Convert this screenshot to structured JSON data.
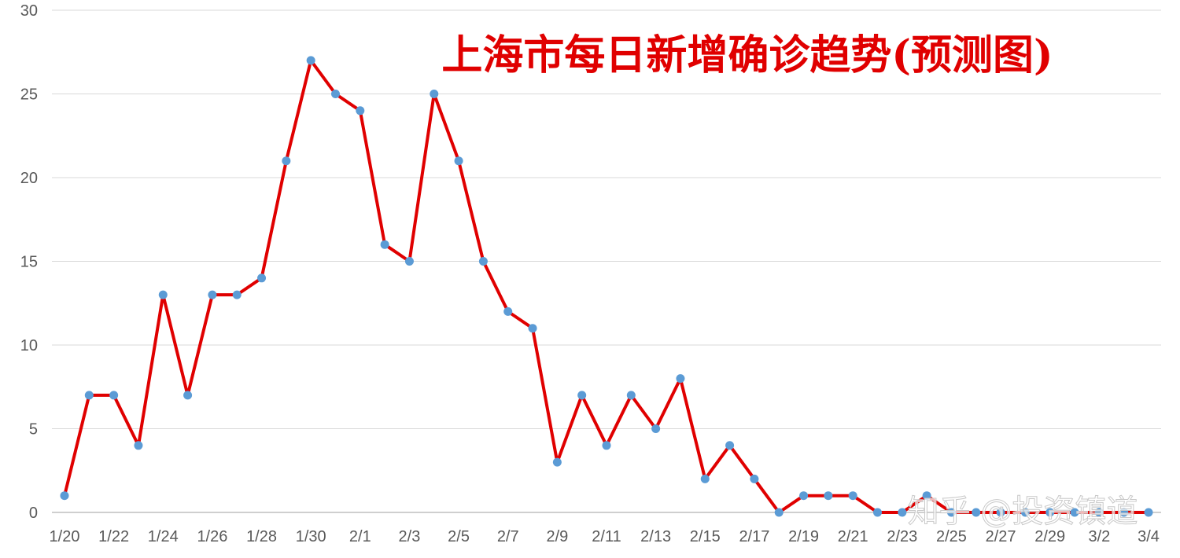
{
  "chart_data": {
    "type": "line",
    "title": "上海市每日新增确诊趋势(预测图)",
    "xlabel": "",
    "ylabel": "",
    "ylim": [
      0,
      30
    ],
    "yticks": [
      0,
      5,
      10,
      15,
      20,
      25,
      30
    ],
    "grid": true,
    "legend": "none",
    "line_color": "#e00000",
    "marker_color": "#5b9bd5",
    "title_color": "#e00000",
    "x_tick_labels": [
      "1/20",
      "1/22",
      "1/24",
      "1/26",
      "1/28",
      "1/30",
      "2/1",
      "2/3",
      "2/5",
      "2/7",
      "2/9",
      "2/11",
      "2/13",
      "2/15",
      "2/17",
      "2/19",
      "2/21",
      "2/23",
      "2/25",
      "2/27",
      "2/29",
      "3/2",
      "3/4"
    ],
    "x": [
      "1/20",
      "1/21",
      "1/22",
      "1/23",
      "1/24",
      "1/25",
      "1/26",
      "1/27",
      "1/28",
      "1/29",
      "1/30",
      "1/31",
      "2/1",
      "2/2",
      "2/3",
      "2/4",
      "2/5",
      "2/6",
      "2/7",
      "2/8",
      "2/9",
      "2/10",
      "2/11",
      "2/12",
      "2/13",
      "2/14",
      "2/15",
      "2/16",
      "2/17",
      "2/18",
      "2/19",
      "2/20",
      "2/21",
      "2/22",
      "2/23",
      "2/24",
      "2/25",
      "2/26",
      "2/27",
      "2/28",
      "2/29",
      "3/1",
      "3/2",
      "3/3",
      "3/4"
    ],
    "series": [
      {
        "values": [
          1,
          7,
          7,
          4,
          13,
          7,
          13,
          13,
          14,
          21,
          27,
          25,
          24,
          16,
          15,
          25,
          21,
          15,
          12,
          11,
          3,
          7,
          4,
          7,
          5,
          8,
          2,
          4,
          2,
          0,
          1,
          1,
          1,
          0,
          0,
          1,
          0,
          0,
          0,
          0,
          0,
          0,
          0,
          0,
          0
        ]
      }
    ]
  },
  "watermark": {
    "text": "知乎 @投资镇道"
  }
}
